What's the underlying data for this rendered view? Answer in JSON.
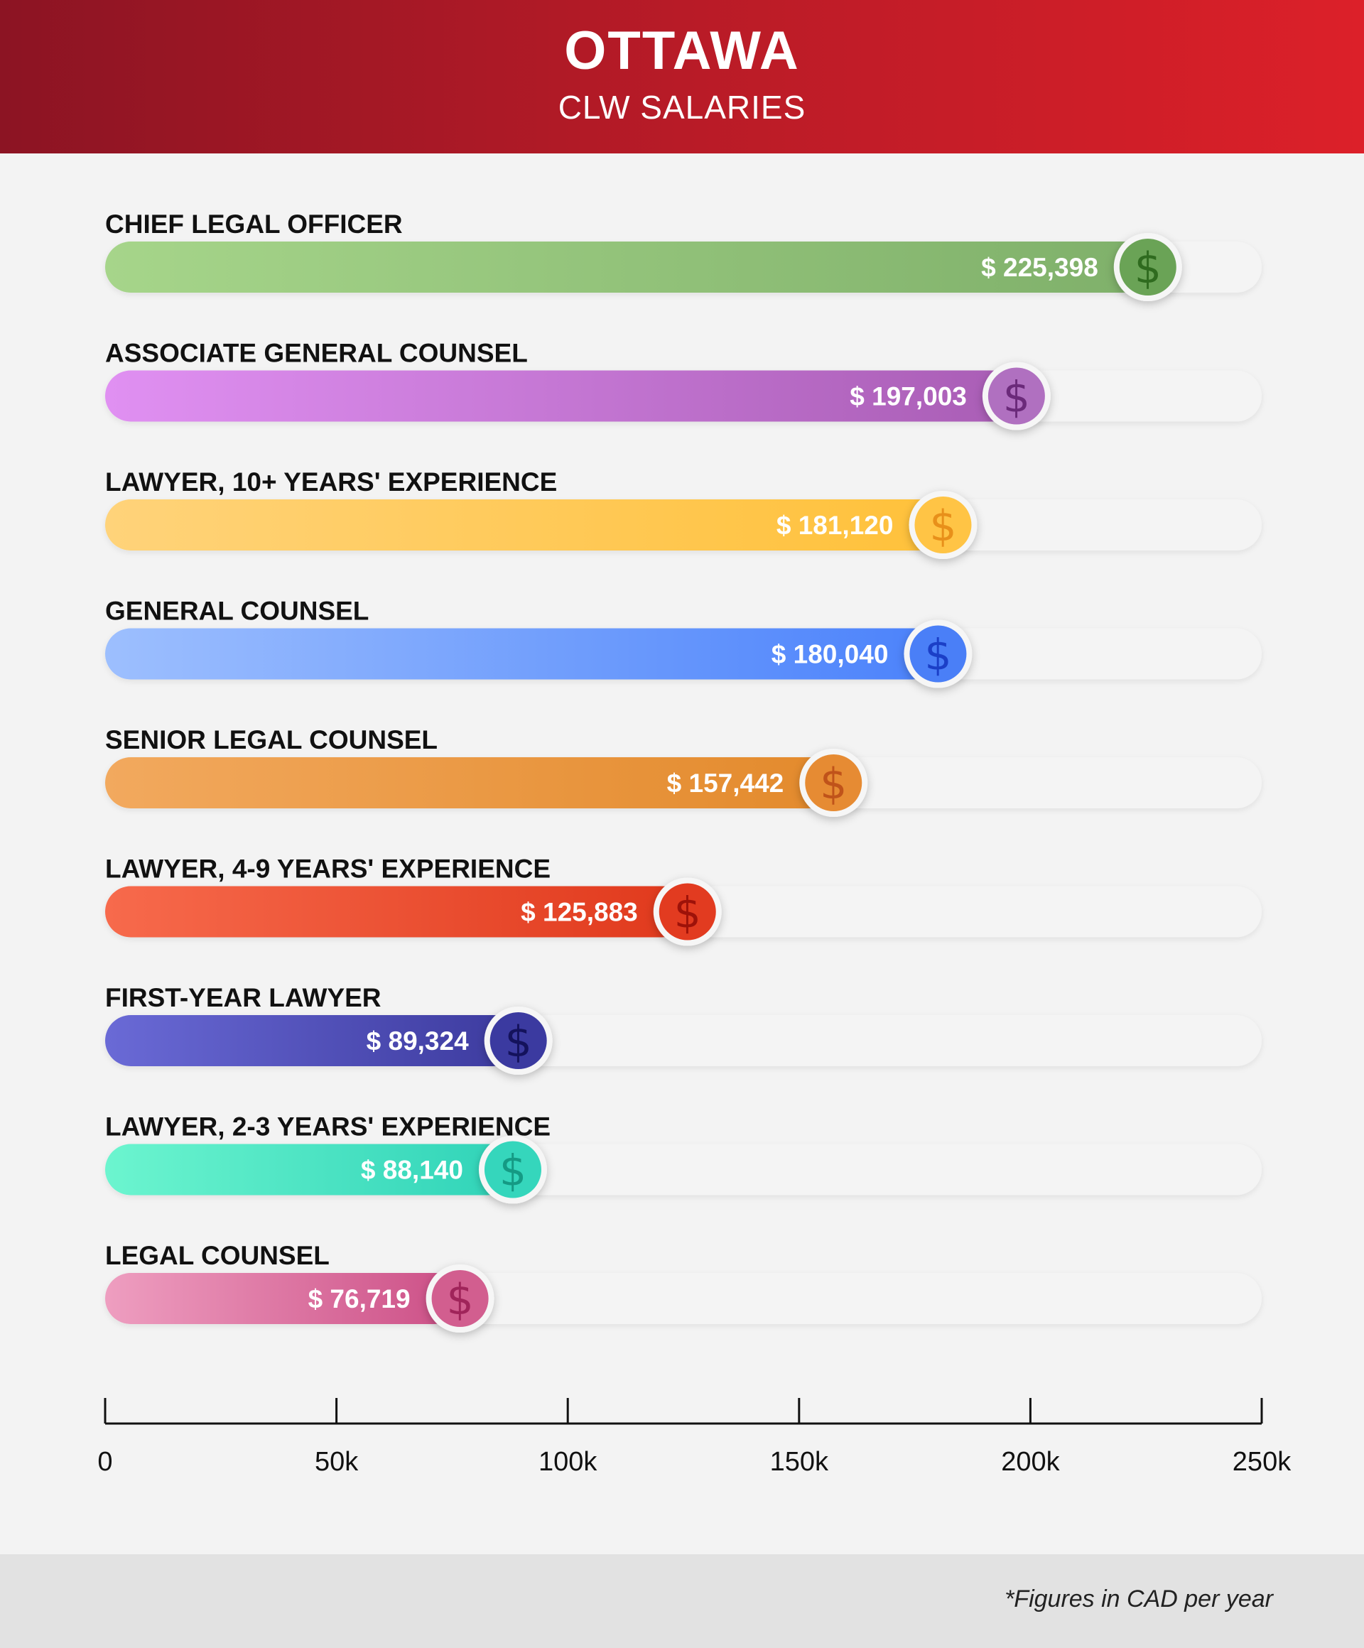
{
  "header": {
    "title": "OTTAWA",
    "subtitle": "CLW SALARIES"
  },
  "footnote": "*Figures in CAD per year",
  "chart_data": {
    "type": "bar",
    "orientation": "horizontal",
    "title": "OTTAWA",
    "subtitle": "CLW SALARIES",
    "xlim": [
      0,
      250000
    ],
    "xticks": [
      0,
      50000,
      100000,
      150000,
      200000,
      250000
    ],
    "xtick_labels": [
      "0",
      "50k",
      "100k",
      "150k",
      "200k",
      "250k"
    ],
    "currency_symbol": "$",
    "grid": false,
    "legend": "none",
    "bars": [
      {
        "label": "CHIEF LEGAL OFFICER",
        "value": 225398,
        "value_label": "$ 225,398",
        "color_start": "#a6d58a",
        "color_end": "#7fb06a",
        "icon_color": "#6aa356",
        "icon_text": "#2f6b1f"
      },
      {
        "label": "ASSOCIATE GENERAL COUNSEL",
        "value": 197003,
        "value_label": "$ 197,003",
        "color_start": "#e090f2",
        "color_end": "#a95db5",
        "icon_color": "#b070c0",
        "icon_text": "#6b2a7a"
      },
      {
        "label": "LAWYER, 10+ YEARS' EXPERIENCE",
        "value": 181120,
        "value_label": "$ 181,120",
        "color_start": "#ffd37a",
        "color_end": "#ffc13a",
        "icon_color": "#ffc445",
        "icon_text": "#e8901a"
      },
      {
        "label": "GENERAL COUNSEL",
        "value": 180040,
        "value_label": "$ 180,040",
        "color_start": "#9dbffe",
        "color_end": "#4b82fb",
        "icon_color": "#4a7ff7",
        "icon_text": "#1b3fc7"
      },
      {
        "label": "SENIOR LEGAL COUNSEL",
        "value": 157442,
        "value_label": "$ 157,442",
        "color_start": "#f2a95e",
        "color_end": "#e38a2c",
        "icon_color": "#e68b33",
        "icon_text": "#c0531a"
      },
      {
        "label": "LAWYER, 4-9 YEARS' EXPERIENCE",
        "value": 125883,
        "value_label": "$ 125,883",
        "color_start": "#f76a4c",
        "color_end": "#e0391c",
        "icon_color": "#e23b20",
        "icon_text": "#9e1209"
      },
      {
        "label": "FIRST-YEAR LAWYER",
        "value": 89324,
        "value_label": "$ 89,324",
        "color_start": "#6a6ad6",
        "color_end": "#3c3a9e",
        "icon_color": "#3b3aa0",
        "icon_text": "#14125c"
      },
      {
        "label": "LAWYER, 2-3 YEARS' EXPERIENCE",
        "value": 88140,
        "value_label": "$ 88,140",
        "color_start": "#6cf5cf",
        "color_end": "#2fd3b8",
        "icon_color": "#35d6bc",
        "icon_text": "#159a84"
      },
      {
        "label": "LEGAL COUNSEL",
        "value": 76719,
        "value_label": "$ 76,719",
        "color_start": "#ee9ec0",
        "color_end": "#cc4f86",
        "icon_color": "#d25e8f",
        "icon_text": "#a0245a"
      }
    ]
  }
}
